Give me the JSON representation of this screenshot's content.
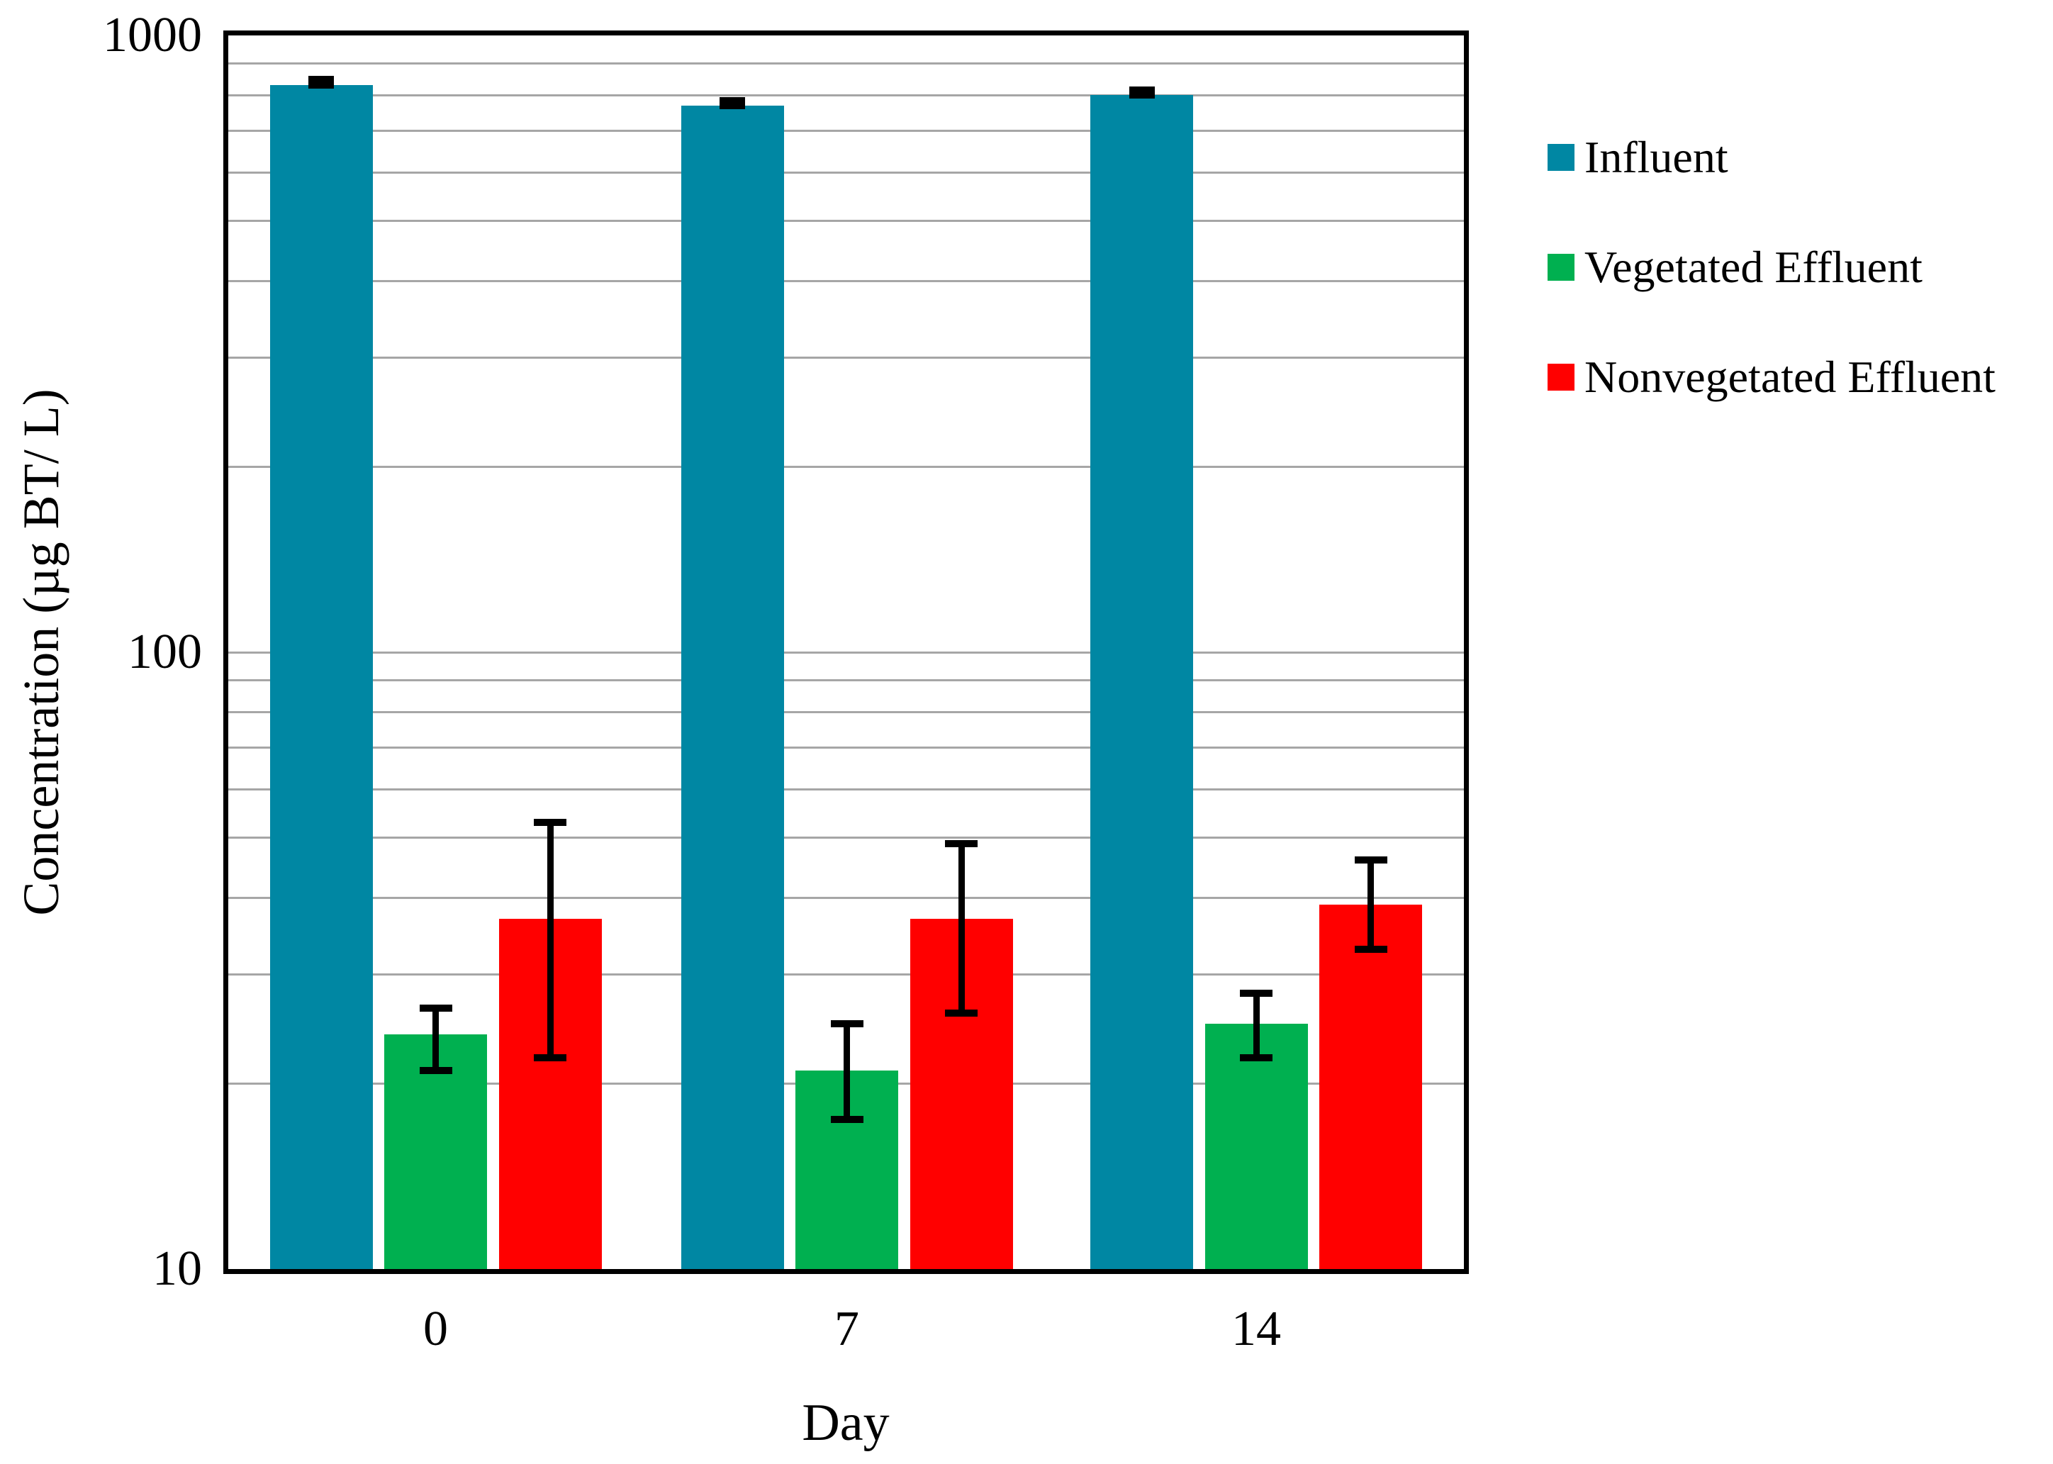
{
  "chart_data": {
    "type": "bar",
    "title": "",
    "xlabel": "Day",
    "ylabel": "Concentration (µg BT/ L)",
    "y_scale": "log",
    "ylim": [
      10,
      1000
    ],
    "yticks": [
      "10",
      "100",
      "1000"
    ],
    "minor_gridlines": [
      20,
      30,
      40,
      50,
      60,
      70,
      80,
      90,
      100,
      200,
      300,
      400,
      500,
      600,
      700,
      800,
      900
    ],
    "categories": [
      "0",
      "7",
      "14"
    ],
    "legend_position": "right",
    "grid": true,
    "gridline_color": "#A6A6A6",
    "error_bar_color": "#000000",
    "series": [
      {
        "name": "Influent",
        "color": "#0087A3",
        "values": [
          830,
          770,
          800
        ],
        "err_hi": [
          848,
          783,
          815
        ],
        "err_lo": [
          830,
          770,
          800
        ]
      },
      {
        "name": "Vegetated Effluent",
        "color": "#00B050",
        "values": [
          24,
          21,
          25
        ],
        "err_hi": [
          26.5,
          25,
          28
        ],
        "err_lo": [
          21,
          17.5,
          22
        ]
      },
      {
        "name": "Nonvegetated Effluent",
        "color": "#FF0000",
        "values": [
          37,
          37,
          39
        ],
        "err_hi": [
          53,
          49,
          46
        ],
        "err_lo": [
          22,
          26,
          33
        ]
      }
    ]
  }
}
